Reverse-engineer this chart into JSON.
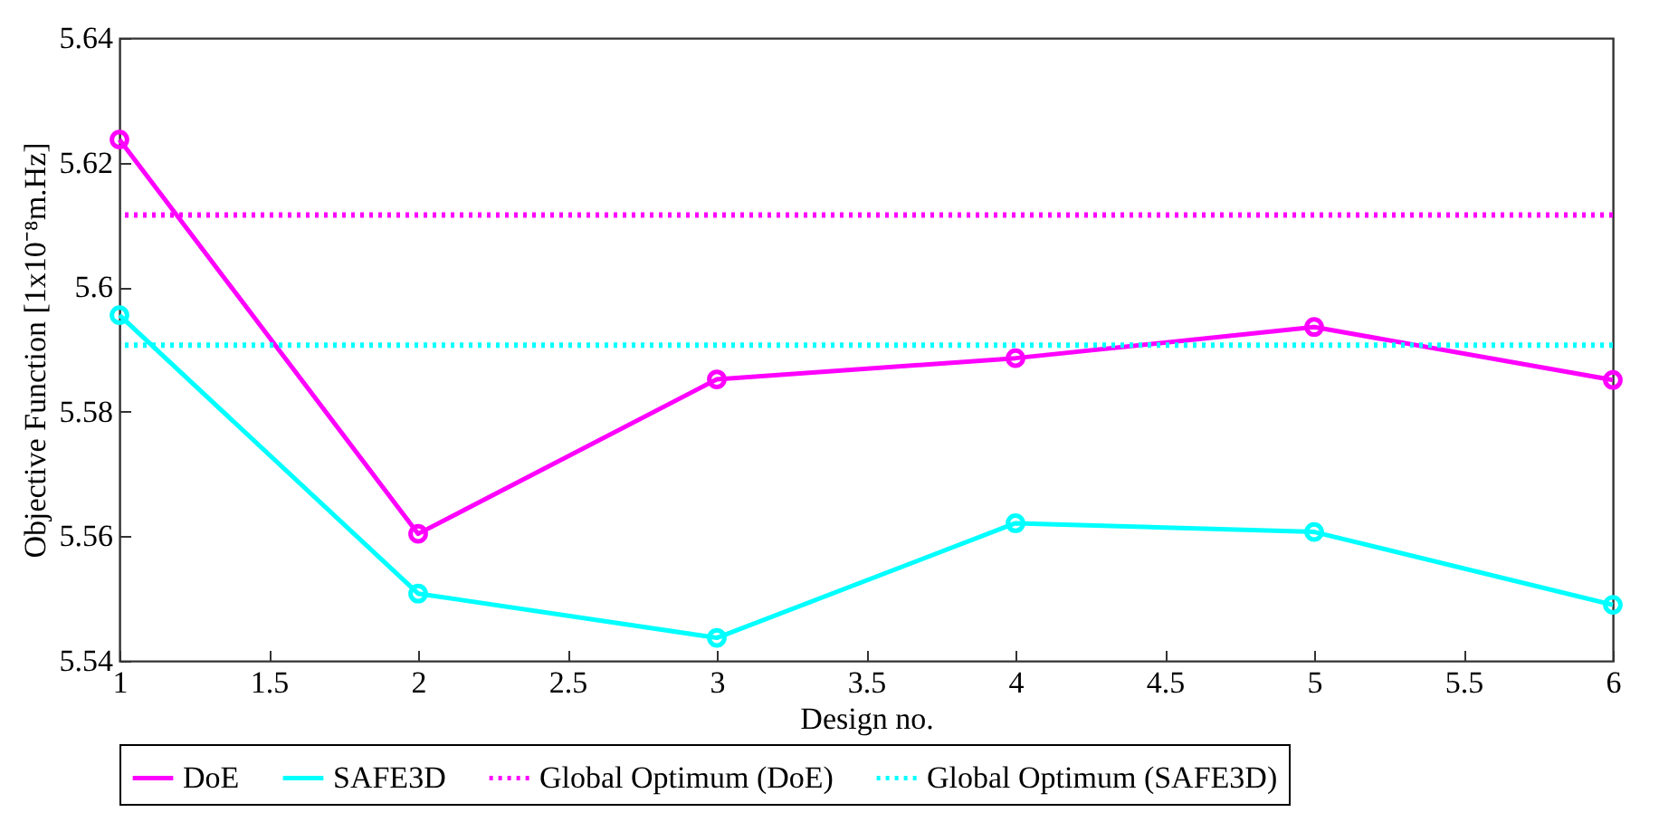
{
  "chart_data": {
    "type": "line",
    "xlabel": "Design no.",
    "ylabel": "Objective Function [1x10⁻⁸m.Hz]",
    "x": [
      1,
      2,
      3,
      4,
      5,
      6
    ],
    "series": [
      {
        "name": "DoE",
        "color": "#ff00ff",
        "values": [
          5.6237,
          5.5604,
          5.5852,
          5.5886,
          5.5936,
          5.5851
        ]
      },
      {
        "name": "SAFE3D",
        "color": "#00ffff",
        "values": [
          5.5955,
          5.5508,
          5.5437,
          5.5621,
          5.5607,
          5.549
        ]
      }
    ],
    "ref_lines": [
      {
        "axis": "y",
        "value": 5.6116,
        "label": "Global Optimum (DoE)",
        "color": "#ff00ff",
        "line_style": "dotted"
      },
      {
        "axis": "y",
        "value": 5.5907,
        "label": "Global Optimum (SAFE3D)",
        "color": "#00ffff",
        "line_style": "dotted"
      }
    ],
    "xlim": [
      1,
      6
    ],
    "xticks": [
      1,
      1.5,
      2,
      2.5,
      3,
      3.5,
      4,
      4.5,
      5,
      5.5,
      6
    ],
    "ylim": [
      5.54,
      5.64
    ],
    "yticks": [
      5.54,
      5.56,
      5.58,
      5.6,
      5.62,
      5.64
    ],
    "grid": false,
    "legend": "bottom",
    "marker": "circle",
    "line_style": "solid"
  }
}
